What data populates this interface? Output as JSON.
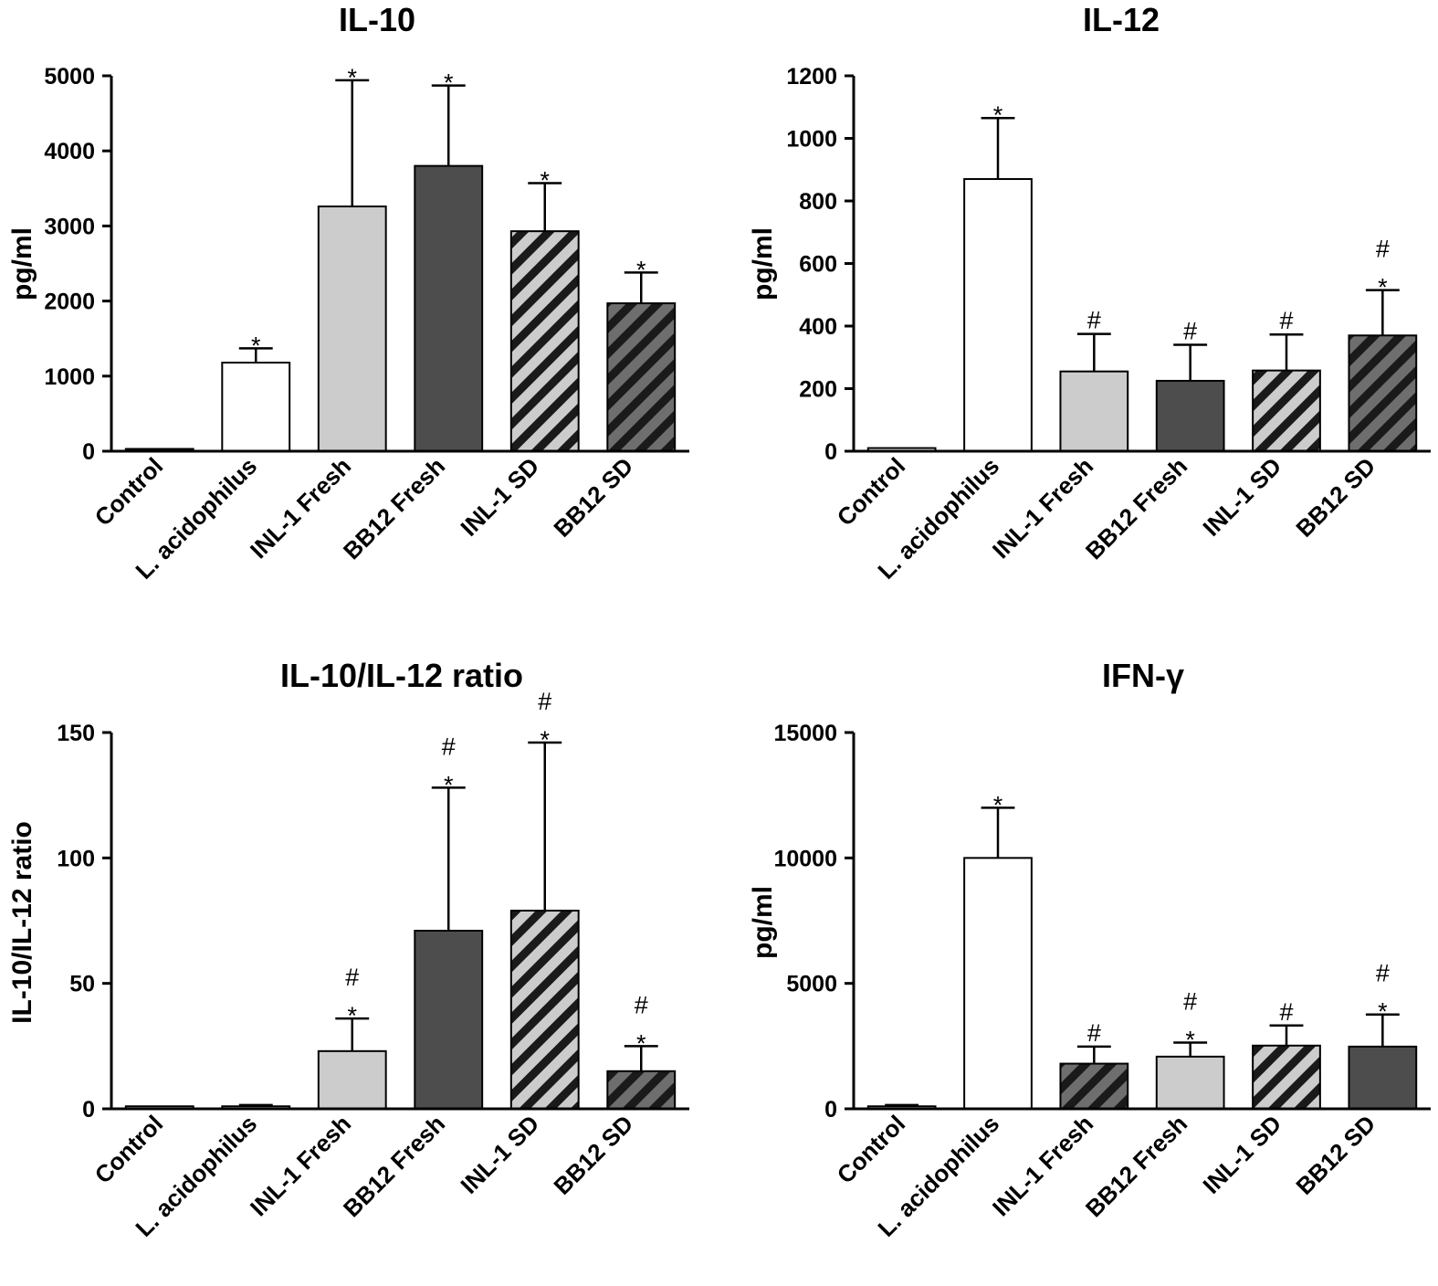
{
  "colors": {
    "white": "#ffffff",
    "light": "#cccccc",
    "dark": "#4d4d4d",
    "stripe_dark": "#333333"
  },
  "chart_data": [
    {
      "type": "bar",
      "title": "IL-10",
      "ylabel": "pg/ml",
      "xlabel": "",
      "ylim": [
        0,
        5000
      ],
      "yticks": [
        "0",
        "1000",
        "2000",
        "3000",
        "4000",
        "5000"
      ],
      "categories": [
        "Control",
        "L. acidophilus",
        "INL-1 Fresh",
        "BB12 Fresh",
        "INL-1 SD",
        "BB12 SD"
      ],
      "values": [
        0,
        1180,
        3260,
        3800,
        2930,
        1970
      ],
      "errors": [
        0,
        190,
        1680,
        1070,
        640,
        410
      ],
      "fills": [
        "white",
        "white",
        "light",
        "dark",
        "hatch-light",
        "hatch-dark"
      ],
      "annotations": [
        "",
        "*",
        "*",
        "*",
        "*",
        "*"
      ]
    },
    {
      "type": "bar",
      "title": "IL-12",
      "ylabel": "pg/ml",
      "xlabel": "",
      "ylim": [
        0,
        1200
      ],
      "yticks": [
        "0",
        "200",
        "400",
        "600",
        "800",
        "1000",
        "1200"
      ],
      "categories": [
        "Control",
        "L. acidophilus",
        "INL-1 Fresh",
        "BB12 Fresh",
        "INL-1 SD",
        "BB12 SD"
      ],
      "values": [
        10,
        870,
        255,
        225,
        258,
        370
      ],
      "errors": [
        0,
        195,
        120,
        115,
        115,
        145
      ],
      "fills": [
        "white",
        "white",
        "light",
        "dark",
        "hatch-light",
        "hatch-dark"
      ],
      "annotations": [
        "",
        "*",
        "#",
        "#",
        "#",
        "#\n*"
      ]
    },
    {
      "type": "bar",
      "title": "IL-10/IL-12 ratio",
      "ylabel": "IL-10/IL-12 ratio",
      "xlabel": "",
      "ylim": [
        0,
        150
      ],
      "yticks": [
        "0",
        "50",
        "100",
        "150"
      ],
      "categories": [
        "Control",
        "L. acidophilus",
        "INL-1 Fresh",
        "BB12 Fresh",
        "INL-1 SD",
        "BB12 SD"
      ],
      "values": [
        1,
        1,
        23,
        71,
        79,
        15
      ],
      "errors": [
        0,
        0.5,
        13,
        57,
        67,
        10
      ],
      "fills": [
        "white",
        "white",
        "light",
        "dark",
        "hatch-light",
        "hatch-dark"
      ],
      "annotations": [
        "",
        "",
        "#\n*",
        "#\n*",
        "#\n*",
        "#\n*"
      ]
    },
    {
      "type": "bar",
      "title": "IFN-γ",
      "ylabel": "pg/ml",
      "xlabel": "",
      "ylim": [
        0,
        15000
      ],
      "yticks": [
        "0",
        "5000",
        "10000",
        "15000"
      ],
      "categories": [
        "Control",
        "L. acidophilus",
        "INL-1 Fresh",
        "BB12 Fresh",
        "INL-1 SD",
        "BB12 SD"
      ],
      "values": [
        100,
        10000,
        1800,
        2080,
        2520,
        2480
      ],
      "errors": [
        50,
        2000,
        680,
        560,
        800,
        1280
      ],
      "fills": [
        "white",
        "white",
        "hatch-dark",
        "light",
        "hatch-light",
        "dark"
      ],
      "annotations": [
        "",
        "*",
        "#",
        "#\n*",
        "#",
        "#\n*"
      ]
    }
  ]
}
